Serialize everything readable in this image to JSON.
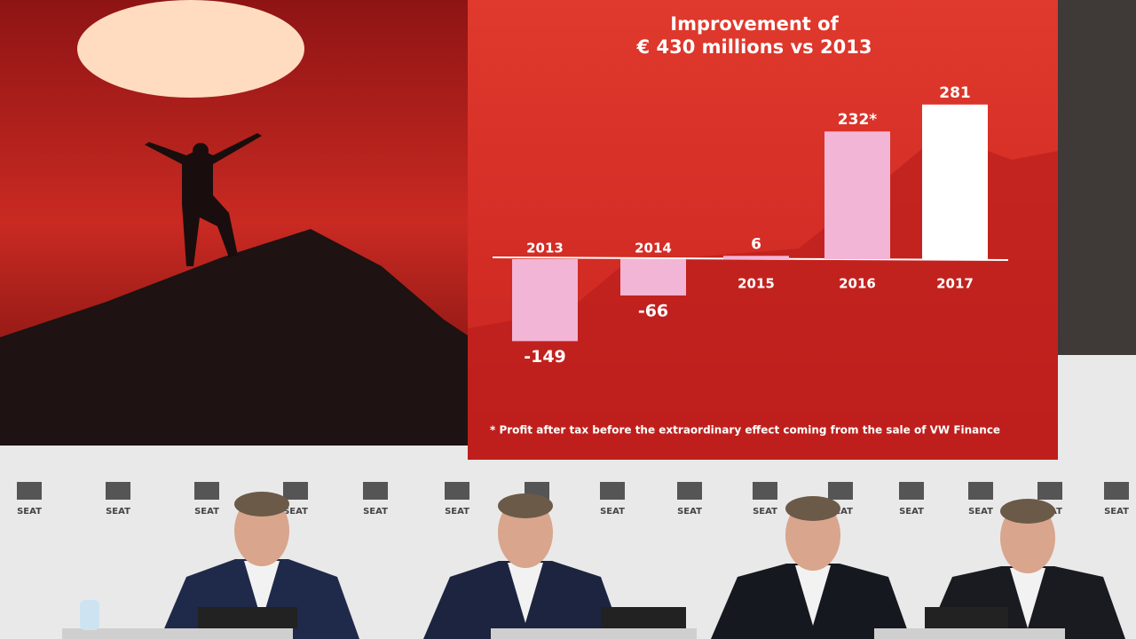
{
  "chart_data": {
    "type": "bar",
    "title": "Improvement of\n€ 430 millions vs 2013",
    "categories": [
      "2013",
      "2014",
      "2015",
      "2016",
      "2017"
    ],
    "values": [
      -149,
      -66,
      6,
      232,
      281
    ],
    "value_labels": [
      "-149",
      "-66",
      "6",
      "232*",
      "281"
    ],
    "colors": [
      "#f3b5d5",
      "#f3b5d5",
      "#f3b5d5",
      "#f3b5d5",
      "#ffffff"
    ],
    "footnote": "* Profit after tax before the extraordinary effect coming from the sale of VW Finance"
  },
  "backdrop": {
    "logo": "SEAT"
  }
}
